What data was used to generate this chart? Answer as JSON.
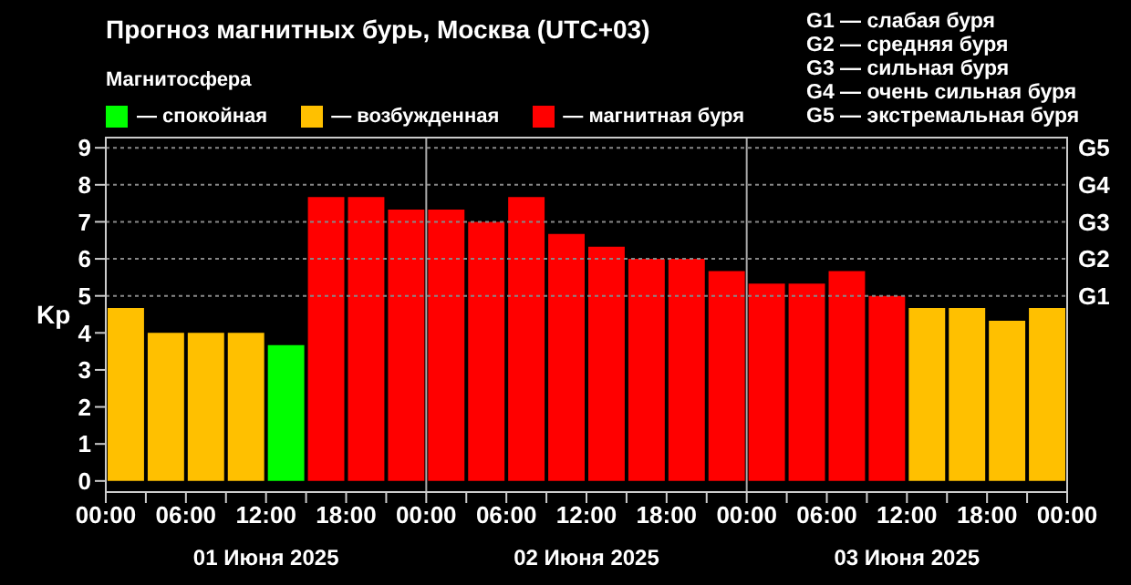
{
  "chart_data": {
    "type": "bar",
    "title": "Прогноз магнитных бурь, Москва (UTC+03)",
    "legend_title": "Магнитосфера",
    "ylabel": "Kp",
    "x": [
      "2025-06-01T01:30",
      "2025-06-01T04:30",
      "2025-06-01T07:30",
      "2025-06-01T10:30",
      "2025-06-01T13:30",
      "2025-06-01T16:30",
      "2025-06-01T19:30",
      "2025-06-01T22:30",
      "2025-06-02T01:30",
      "2025-06-02T04:30",
      "2025-06-02T07:30",
      "2025-06-02T10:30",
      "2025-06-02T13:30",
      "2025-06-02T16:30",
      "2025-06-02T19:30",
      "2025-06-02T22:30",
      "2025-06-03T01:30",
      "2025-06-03T04:30",
      "2025-06-03T07:30",
      "2025-06-03T10:30",
      "2025-06-03T13:30",
      "2025-06-03T16:30",
      "2025-06-03T19:30",
      "2025-06-03T22:30"
    ],
    "stacked": true,
    "series": [
      {
        "name": "— спокойная",
        "color": "#00ff00",
        "values": [
          null,
          null,
          null,
          null,
          3.67,
          null,
          null,
          null,
          null,
          null,
          null,
          null,
          null,
          null,
          null,
          null,
          null,
          null,
          null,
          null,
          null,
          null,
          null,
          null
        ]
      },
      {
        "name": "— возбужденная",
        "color": "#ffc000",
        "values": [
          4.67,
          4,
          4,
          4,
          null,
          null,
          null,
          null,
          null,
          null,
          null,
          null,
          null,
          null,
          null,
          null,
          null,
          null,
          null,
          null,
          4.67,
          4.67,
          4.33,
          4.67
        ]
      },
      {
        "name": "— магнитная буря",
        "color": "#ff0000",
        "values": [
          null,
          null,
          null,
          null,
          null,
          7.67,
          7.67,
          7.33,
          7.33,
          7,
          7.67,
          6.67,
          6.33,
          6,
          6,
          5.67,
          5.33,
          5.33,
          5.67,
          5,
          null,
          null,
          null,
          null
        ]
      }
    ],
    "xlim": [
      "2025-06-01T00:00",
      "2025-06-04T00:00"
    ],
    "xticks": [
      {
        "value": "2025-06-01T00:00",
        "label": "00:00"
      },
      {
        "value": "2025-06-01T03:00",
        "label": null
      },
      {
        "value": "2025-06-01T06:00",
        "label": "06:00"
      },
      {
        "value": "2025-06-01T09:00",
        "label": null
      },
      {
        "value": "2025-06-01T12:00",
        "label": "12:00"
      },
      {
        "value": "2025-06-01T15:00",
        "label": null
      },
      {
        "value": "2025-06-01T18:00",
        "label": "18:00"
      },
      {
        "value": "2025-06-01T21:00",
        "label": null
      },
      {
        "value": "2025-06-02T00:00",
        "label": "00:00"
      },
      {
        "value": "2025-06-02T03:00",
        "label": null
      },
      {
        "value": "2025-06-02T06:00",
        "label": "06:00"
      },
      {
        "value": "2025-06-02T09:00",
        "label": null
      },
      {
        "value": "2025-06-02T12:00",
        "label": "12:00"
      },
      {
        "value": "2025-06-02T15:00",
        "label": null
      },
      {
        "value": "2025-06-02T18:00",
        "label": "18:00"
      },
      {
        "value": "2025-06-02T21:00",
        "label": null
      },
      {
        "value": "2025-06-03T00:00",
        "label": "00:00"
      },
      {
        "value": "2025-06-03T03:00",
        "label": null
      },
      {
        "value": "2025-06-03T06:00",
        "label": "06:00"
      },
      {
        "value": "2025-06-03T09:00",
        "label": null
      },
      {
        "value": "2025-06-03T12:00",
        "label": "12:00"
      },
      {
        "value": "2025-06-03T15:00",
        "label": null
      },
      {
        "value": "2025-06-03T18:00",
        "label": "18:00"
      },
      {
        "value": "2025-06-03T21:00",
        "label": null
      },
      {
        "value": "2025-06-04T00:00",
        "label": "00:00"
      }
    ],
    "ylim": [
      -0.3,
      9.3
    ],
    "yticks": [
      0,
      1,
      2,
      3,
      4,
      5,
      6,
      7,
      8,
      9
    ],
    "legend": "top left",
    "ref_lines": [
      {
        "axis": "x",
        "value": "2025-06-02T00:00",
        "color": "#aaaaaa"
      },
      {
        "axis": "x",
        "value": "2025-06-03T00:00",
        "color": "#aaaaaa"
      },
      {
        "axis": "y",
        "value": 5,
        "label": "G1",
        "color": "#888888",
        "line_style": "dotted"
      },
      {
        "axis": "y",
        "value": 6,
        "label": "G2",
        "color": "#888888",
        "line_style": "dotted"
      },
      {
        "axis": "y",
        "value": 7,
        "label": "G3",
        "color": "#888888",
        "line_style": "dotted"
      },
      {
        "axis": "y",
        "value": 8,
        "label": "G4",
        "color": "#888888",
        "line_style": "dotted"
      },
      {
        "axis": "y",
        "value": 9,
        "label": "G5",
        "color": "#888888",
        "line_style": "dotted"
      }
    ],
    "annotations": [
      "G1 — слабая буря",
      "G2 — средняя буря",
      "G3 — сильная буря",
      "G4 — очень сильная буря",
      "G5 — экстремальная буря",
      "01 Июня 2025",
      "02 Июня 2025",
      "03 Июня 2025"
    ]
  }
}
